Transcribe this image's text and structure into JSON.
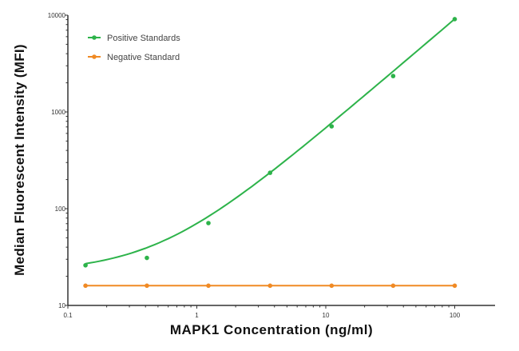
{
  "chart_data": {
    "type": "line",
    "title": "",
    "xlabel": "MAPK1 Concentration (ng/ml)",
    "ylabel": "Median  Fluorescent Intensity  (MFI)",
    "x_scale": "log",
    "y_scale": "log",
    "xlim": [
      0.1,
      155
    ],
    "ylim": [
      10,
      10000
    ],
    "x_ticks": [
      "0.1",
      "1",
      "10",
      "100"
    ],
    "y_ticks": [
      "10",
      "100",
      "1000",
      "10000"
    ],
    "grid": false,
    "legend_position": "top-left",
    "series": [
      {
        "name": "Positive Standards",
        "color": "#2db34a",
        "x": [
          0.137,
          0.41,
          1.23,
          3.7,
          11.1,
          33.3,
          100
        ],
        "y": [
          26,
          31,
          71,
          235,
          710,
          2350,
          9100
        ],
        "fit_curve": true
      },
      {
        "name": "Negative Standard",
        "color": "#f08a24",
        "x": [
          0.137,
          0.41,
          1.23,
          3.7,
          11.1,
          33.3,
          100
        ],
        "y": [
          16,
          16,
          16,
          16,
          16,
          16,
          16
        ],
        "fit_curve": false
      }
    ]
  }
}
